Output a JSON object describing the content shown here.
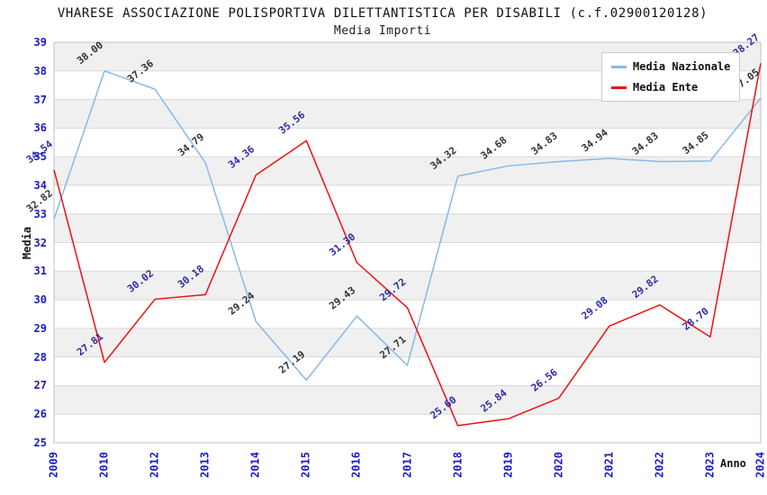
{
  "title": "VHARESE ASSOCIAZIONE POLISPORTIVA DILETTANTISTICA PER DISABILI (c.f.02900120128)",
  "subtitle": "Media Importi",
  "chart_data": {
    "type": "line",
    "categories": [
      "2009",
      "2010",
      "2012",
      "2013",
      "2014",
      "2015",
      "2016",
      "2017",
      "2018",
      "2019",
      "2020",
      "2021",
      "2022",
      "2023",
      "2024"
    ],
    "series": [
      {
        "name": "Media Nazionale",
        "color": "#88b9e8",
        "label_color": "#333333",
        "values": [
          32.82,
          38.0,
          37.36,
          34.79,
          29.24,
          27.19,
          29.43,
          27.71,
          34.32,
          34.68,
          34.83,
          34.94,
          34.83,
          34.85,
          37.05
        ]
      },
      {
        "name": "Media Ente",
        "color": "#ee1111",
        "label_color": "#2b2ba6",
        "values": [
          34.54,
          27.81,
          30.02,
          30.18,
          34.36,
          35.56,
          31.3,
          29.72,
          25.6,
          25.84,
          26.56,
          29.08,
          29.82,
          28.7,
          38.27
        ]
      }
    ],
    "xlabel": "Anno",
    "ylabel": "Media",
    "ylim": [
      25,
      39
    ],
    "ytick_step": 1,
    "grid": "alternating-horizontal-bands",
    "legend_position": "top-right"
  },
  "colors": {
    "axis_tick": "#1a1acc",
    "band_gray": "#f0f0f0",
    "grid_line": "#d8d8d8",
    "plot_border": "#c0c0c0",
    "title_text": "#111111"
  }
}
